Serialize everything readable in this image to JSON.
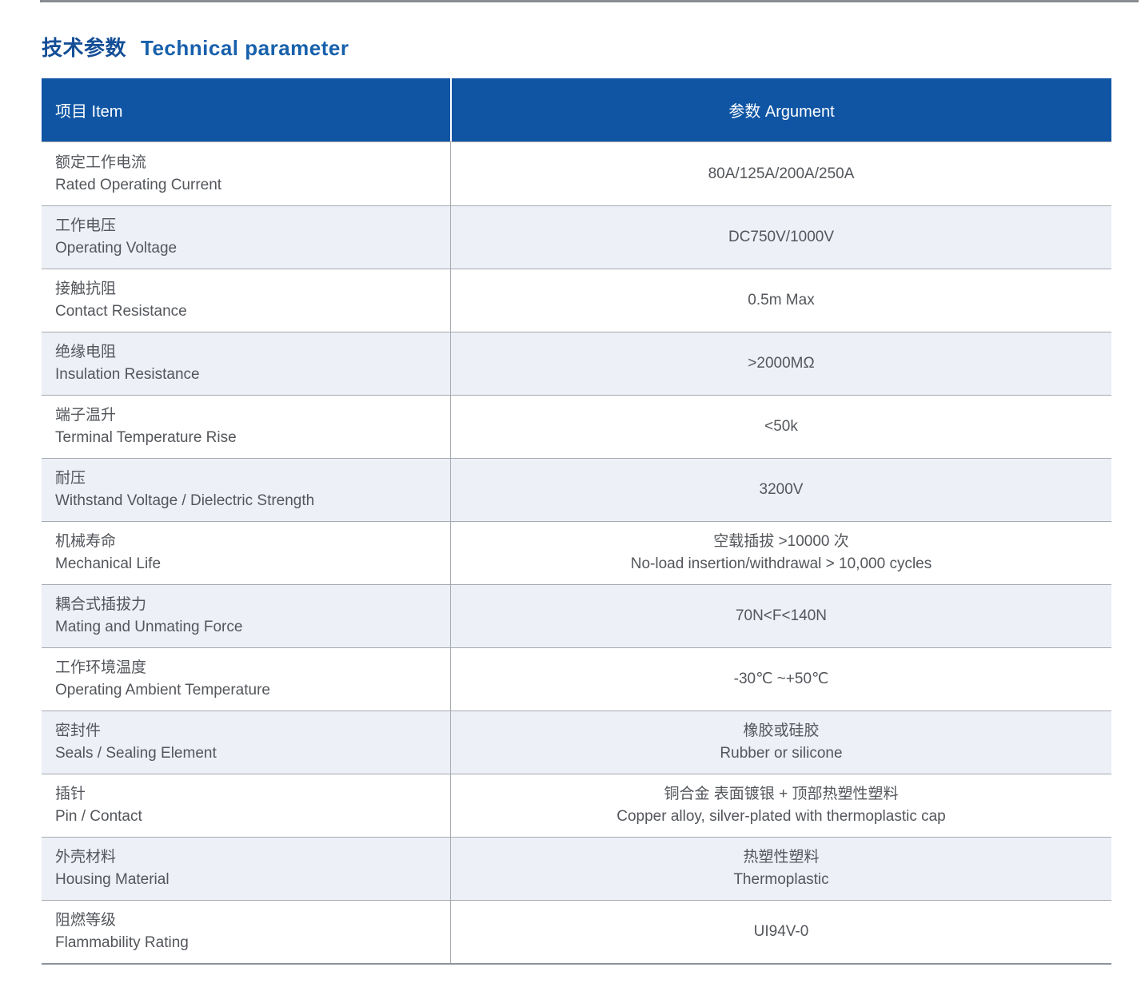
{
  "header": {
    "title_zh": "技术参数",
    "title_en": "Technical parameter"
  },
  "table": {
    "header_item": "项目 Item",
    "header_argument": "参数 Argument",
    "rows": [
      {
        "zh": "额定工作电流",
        "en": "Rated Operating Current",
        "values": [
          "80A/125A/200A/250A"
        ]
      },
      {
        "zh": "工作电压",
        "en": "Operating Voltage",
        "values": [
          "DC750V/1000V"
        ]
      },
      {
        "zh": "接触抗阻",
        "en": "Contact Resistance",
        "values": [
          "0.5m Max"
        ]
      },
      {
        "zh": "绝缘电阻",
        "en": "Insulation Resistance",
        "values": [
          ">2000MΩ"
        ]
      },
      {
        "zh": "端子温升",
        "en": "Terminal Temperature Rise",
        "values": [
          "<50k"
        ]
      },
      {
        "zh": "耐压",
        "en": "Withstand Voltage / Dielectric Strength",
        "values": [
          "3200V"
        ]
      },
      {
        "zh": "机械寿命",
        "en": "Mechanical Life",
        "values": [
          "空载插拔 >10000 次",
          "No-load insertion/withdrawal > 10,000 cycles"
        ]
      },
      {
        "zh": "耦合式插拔力",
        "en": "Mating and Unmating Force",
        "values": [
          "70N<F<140N"
        ]
      },
      {
        "zh": "工作环境温度",
        "en": "Operating Ambient Temperature",
        "values": [
          "-30℃ ~+50℃"
        ]
      },
      {
        "zh": "密封件",
        "en": "Seals / Sealing Element",
        "values": [
          "橡胶或硅胶",
          "Rubber or silicone"
        ]
      },
      {
        "zh": "插针",
        "en": "Pin / Contact",
        "values": [
          "铜合金 表面镀银 + 顶部热塑性塑料",
          "Copper alloy, silver-plated with thermoplastic cap"
        ]
      },
      {
        "zh": "外壳材料",
        "en": "Housing Material",
        "values": [
          "热塑性塑料",
          "Thermoplastic"
        ]
      },
      {
        "zh": "阻燃等级",
        "en": "Flammability Rating",
        "values": [
          "UI94V-0"
        ]
      }
    ]
  },
  "colors": {
    "header_blue": "#0f55a4",
    "title_blue": "#1456a0",
    "zebra_row": "#edf0f6",
    "border_gray": "#a6aab1",
    "body_text": "#53565b",
    "top_rule": "#898d92"
  }
}
